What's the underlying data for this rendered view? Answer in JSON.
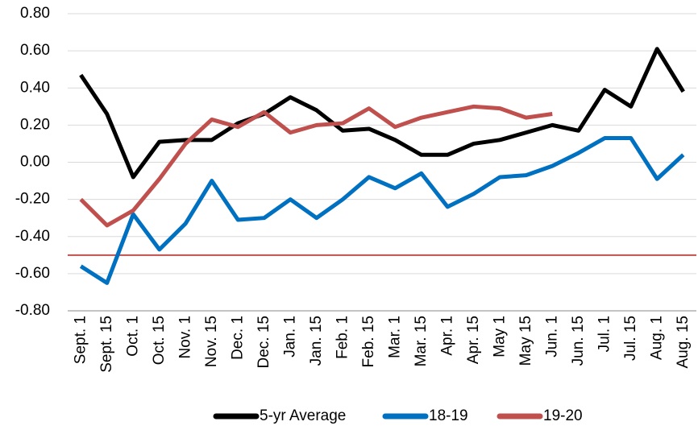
{
  "chart_data": {
    "type": "line",
    "categories": [
      "Sept. 1",
      "Sept. 15",
      "Oct. 1",
      "Oct. 15",
      "Nov. 1",
      "Nov. 15",
      "Dec. 1",
      "Dec. 15",
      "Jan. 1",
      "Jan. 15",
      "Feb. 1",
      "Feb. 15",
      "Mar. 1",
      "Mar. 15",
      "Apr. 1",
      "Apr. 15",
      "May 1",
      "May 15",
      "Jun. 1",
      "Jun. 15",
      "Jul. 1",
      "Jul. 15",
      "Aug. 1",
      "Aug. 15"
    ],
    "series": [
      {
        "name": "5-yr Average",
        "color": "#000000",
        "values": [
          0.47,
          0.26,
          -0.08,
          0.11,
          0.12,
          0.12,
          0.21,
          0.26,
          0.35,
          0.28,
          0.17,
          0.18,
          0.12,
          0.04,
          0.04,
          0.1,
          0.12,
          0.16,
          0.2,
          0.17,
          0.39,
          0.3,
          0.61,
          0.38
        ]
      },
      {
        "name": "18-19",
        "color": "#0070c0",
        "values": [
          -0.56,
          -0.65,
          -0.28,
          -0.47,
          -0.33,
          -0.1,
          -0.31,
          -0.3,
          -0.2,
          -0.3,
          -0.2,
          -0.08,
          -0.14,
          -0.06,
          -0.24,
          -0.17,
          -0.08,
          -0.07,
          -0.02,
          0.05,
          0.13,
          0.13,
          -0.09,
          0.04
        ]
      },
      {
        "name": "19-20",
        "color": "#c0504d",
        "values": [
          -0.2,
          -0.34,
          -0.26,
          -0.09,
          0.1,
          0.23,
          0.19,
          0.27,
          0.16,
          0.2,
          0.21,
          0.29,
          0.19,
          0.24,
          0.27,
          0.3,
          0.29,
          0.24,
          0.26,
          null,
          null,
          null,
          null,
          null
        ]
      }
    ],
    "ylim": [
      -0.8,
      0.8
    ],
    "yticks": [
      {
        "value": -0.8,
        "label": "-0.80"
      },
      {
        "value": -0.6,
        "label": "-0.60"
      },
      {
        "value": -0.4,
        "label": "-0.40"
      },
      {
        "value": -0.2,
        "label": "-0.20"
      },
      {
        "value": 0,
        "label": "0.00"
      },
      {
        "value": 0.2,
        "label": "0.20"
      },
      {
        "value": 0.4,
        "label": "0.40"
      },
      {
        "value": 0.6,
        "label": "0.60"
      },
      {
        "value": 0.8,
        "label": "0.80"
      }
    ],
    "grid": true,
    "reference_line": {
      "value": -0.5,
      "color": "#c0504d"
    },
    "legend": "bottom"
  }
}
